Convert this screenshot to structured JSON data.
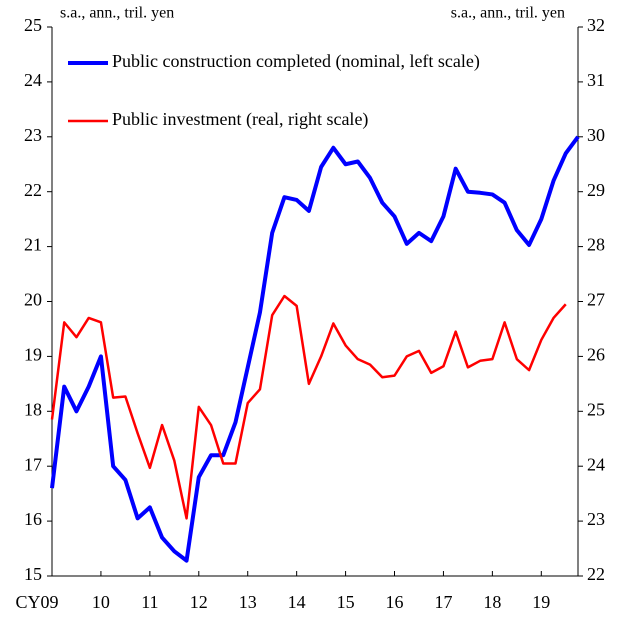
{
  "chart_data": {
    "type": "line",
    "y_label": "s.a., ann., tril.  yen",
    "y2_label": "s.a., ann., tril.  yen",
    "x": [
      2009,
      2009.25,
      2009.5,
      2009.75,
      2010,
      2010.25,
      2010.5,
      2010.75,
      2011,
      2011.25,
      2011.5,
      2011.75,
      2012,
      2012.25,
      2012.5,
      2012.75,
      2013,
      2013.25,
      2013.5,
      2013.75,
      2014,
      2014.25,
      2014.5,
      2014.75,
      2015,
      2015.25,
      2015.5,
      2015.75,
      2016,
      2016.25,
      2016.5,
      2016.75,
      2017,
      2017.25,
      2017.5,
      2017.75,
      2018,
      2018.25,
      2018.5,
      2018.75,
      2019,
      2019.25,
      2019.5,
      2019.75
    ],
    "series": [
      {
        "name": "Public construction completed (nominal, left scale)",
        "color": "#0000ff",
        "axis": "y",
        "values": [
          16.6,
          18.45,
          18.0,
          18.45,
          19.0,
          17.0,
          16.75,
          16.05,
          16.25,
          15.7,
          15.45,
          15.28,
          16.8,
          17.2,
          17.2,
          17.8,
          18.8,
          19.8,
          21.25,
          21.9,
          21.85,
          21.65,
          22.45,
          22.8,
          22.5,
          22.55,
          22.25,
          21.8,
          21.55,
          21.05,
          21.25,
          21.1,
          21.55,
          22.42,
          22.0,
          21.98,
          21.95,
          21.8,
          21.3,
          21.03,
          21.5,
          22.2,
          22.7,
          23.0
        ]
      },
      {
        "name": "Public investment (real, right scale)",
        "color": "#ff0000",
        "axis": "y2",
        "values": [
          24.85,
          26.62,
          26.35,
          26.7,
          26.62,
          25.25,
          25.27,
          24.6,
          23.97,
          24.75,
          24.1,
          23.05,
          25.08,
          24.75,
          24.05,
          24.05,
          25.15,
          25.4,
          26.75,
          27.1,
          26.92,
          25.5,
          26.0,
          26.6,
          26.2,
          25.95,
          25.85,
          25.62,
          25.65,
          26.0,
          26.1,
          25.7,
          25.82,
          26.45,
          25.8,
          25.92,
          25.95,
          26.62,
          25.95,
          25.75,
          26.3,
          26.7,
          26.95,
          null
        ]
      }
    ],
    "xlim": [
      2009,
      2019.75
    ],
    "xticks": [
      {
        "value": 2009,
        "label": "CY09"
      },
      {
        "value": 2010,
        "label": "10"
      },
      {
        "value": 2011,
        "label": "11"
      },
      {
        "value": 2012,
        "label": "12"
      },
      {
        "value": 2013,
        "label": "13"
      },
      {
        "value": 2014,
        "label": "14"
      },
      {
        "value": 2015,
        "label": "15"
      },
      {
        "value": 2016,
        "label": "16"
      },
      {
        "value": 2017,
        "label": "17"
      },
      {
        "value": 2018,
        "label": "18"
      },
      {
        "value": 2019,
        "label": "19"
      }
    ],
    "ylim": [
      15,
      25
    ],
    "yticks": [
      15,
      16,
      17,
      18,
      19,
      20,
      21,
      22,
      23,
      24,
      25
    ],
    "y2lim": [
      22,
      32
    ],
    "y2ticks": [
      22,
      23,
      24,
      25,
      26,
      27,
      28,
      29,
      30,
      31,
      32
    ],
    "legend": "upper left",
    "grid": false
  }
}
